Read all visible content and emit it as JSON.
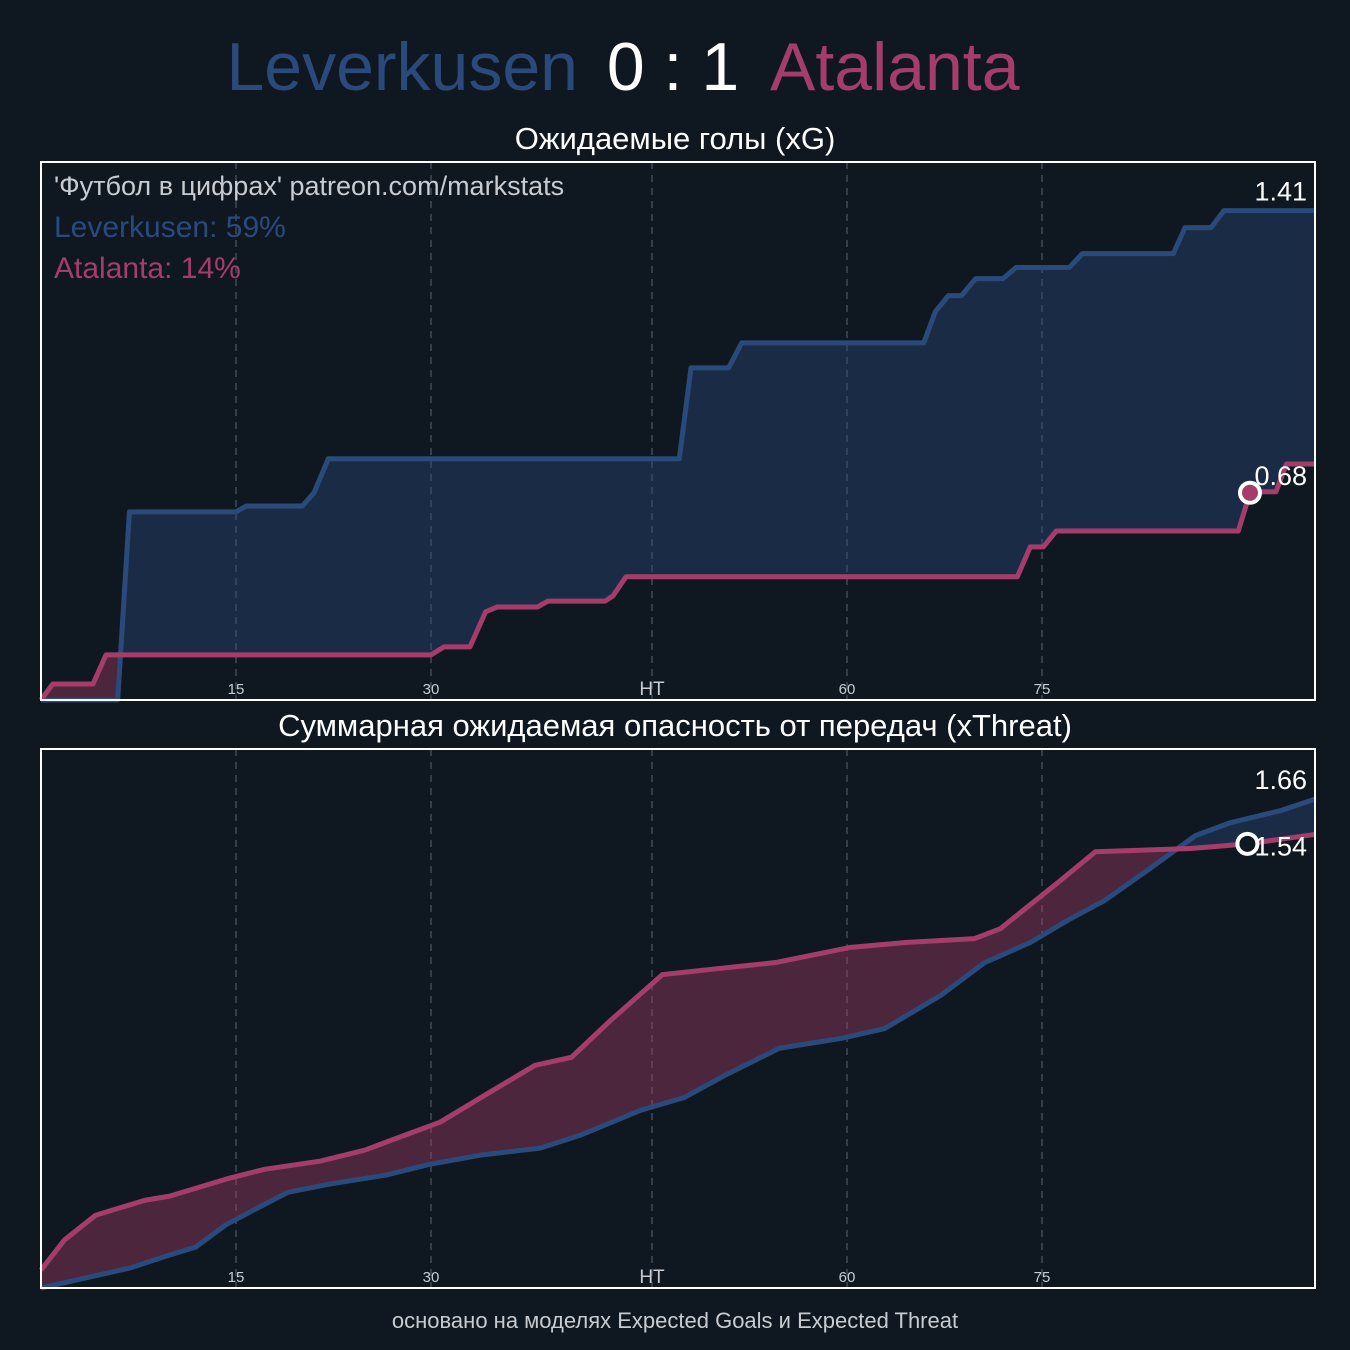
{
  "header": {
    "home": "Leverkusen",
    "score": "0 : 1",
    "away": "Atalanta",
    "home_color": "#2a4a7c",
    "away_color": "#a53d6a"
  },
  "footer": "основано на моделях Expected Goals и Expected Threat",
  "chart_data": [
    {
      "type": "line",
      "title": "Ожидаемые голы (xG)",
      "annotations": [
        "'Футбол в цифрах' patreon.com/markstats",
        "Leverkusen: 59%",
        "Atalanta: 14%"
      ],
      "xlim": [
        0,
        98
      ],
      "ylim": [
        0,
        1.55
      ],
      "xticks": [
        15,
        30,
        {
          "value": 47,
          "label": "HT"
        },
        {
          "value": 62,
          "label": "60"
        },
        {
          "value": 77,
          "label": "75"
        }
      ],
      "grid": true,
      "series": [
        {
          "name": "Leverkusen",
          "color": "#2a4a7c",
          "x": [
            0,
            5.9,
            6.8,
            15,
            15.8,
            20.1,
            21,
            22.1,
            49.1,
            50,
            52.9,
            53.9,
            67.9,
            68.8,
            69.8,
            70.8,
            71.9,
            74,
            75,
            79.1,
            80.1,
            87.1,
            88,
            90,
            91,
            98
          ],
          "values": [
            0,
            0,
            0.542,
            0.542,
            0.559,
            0.559,
            0.597,
            0.695,
            0.695,
            0.957,
            0.957,
            1.029,
            1.029,
            1.119,
            1.165,
            1.165,
            1.214,
            1.214,
            1.246,
            1.246,
            1.286,
            1.286,
            1.361,
            1.361,
            1.41,
            1.41
          ]
        },
        {
          "name": "Atalanta",
          "color": "#a53d6a",
          "x": [
            0,
            0.9,
            4,
            5,
            30,
            31,
            33,
            34.2,
            35.1,
            38.2,
            39,
            43.4,
            44,
            45,
            75.1,
            76.1,
            77.1,
            78.1,
            92.1,
            93,
            94,
            95,
            95.8,
            98
          ],
          "values": [
            0,
            0.046,
            0.046,
            0.13,
            0.13,
            0.153,
            0.153,
            0.254,
            0.268,
            0.268,
            0.285,
            0.285,
            0.3,
            0.355,
            0.355,
            0.441,
            0.441,
            0.487,
            0.487,
            0.597,
            0.6,
            0.6,
            0.68,
            0.68
          ]
        }
      ],
      "markers": {
        "x": [
          93
        ],
        "values": [
          0.597
        ],
        "fill": "#a53d6a"
      }
    },
    {
      "type": "line",
      "title": "Суммарная ожидаемая опасность от передач (xThreat)",
      "xlim": [
        0,
        98
      ],
      "ylim": [
        0,
        1.83
      ],
      "xticks": [
        15,
        30,
        {
          "value": 47,
          "label": "HT"
        },
        {
          "value": 62,
          "label": "60"
        },
        {
          "value": 77,
          "label": "75"
        }
      ],
      "grid": true,
      "series": [
        {
          "name": "Leverkusen",
          "color": "#2a4a7c",
          "x": [
            0,
            3.0,
            6.85,
            9.9,
            11.9,
            14.2,
            16.8,
            19.0,
            22.2,
            26.5,
            29.9,
            33.8,
            38.4,
            41.5,
            46.1,
            49.5,
            52.6,
            56.8,
            61.5,
            64.9,
            69.2,
            72.6,
            76.1,
            79.2,
            81.8,
            85.3,
            88.8,
            91.5,
            95.3,
            98
          ],
          "values": [
            0,
            0.03,
            0.068,
            0.112,
            0.139,
            0.214,
            0.275,
            0.325,
            0.353,
            0.383,
            0.42,
            0.451,
            0.475,
            0.519,
            0.603,
            0.647,
            0.722,
            0.814,
            0.847,
            0.881,
            0.993,
            1.105,
            1.173,
            1.254,
            1.315,
            1.424,
            1.536,
            1.58,
            1.62,
            1.66
          ]
        },
        {
          "name": "Atalanta",
          "color": "#a53d6a",
          "x": [
            0,
            1.8,
            4.2,
            8.0,
            9.9,
            14.5,
            17.2,
            21.5,
            24.9,
            28.0,
            30.7,
            34.5,
            38.0,
            40.8,
            43.8,
            47.8,
            52.2,
            56.5,
            62.2,
            66.5,
            71.8,
            73.8,
            78.4,
            81.1,
            88.4,
            92.8,
            98
          ],
          "values": [
            0.061,
            0.163,
            0.247,
            0.298,
            0.312,
            0.373,
            0.403,
            0.431,
            0.468,
            0.519,
            0.563,
            0.664,
            0.756,
            0.783,
            0.908,
            1.064,
            1.085,
            1.105,
            1.156,
            1.173,
            1.186,
            1.22,
            1.383,
            1.481,
            1.492,
            1.508,
            1.54
          ]
        }
      ],
      "markers": {
        "x": [
          92.8
        ],
        "values": [
          1.508
        ],
        "fill": "#0f1821"
      }
    }
  ]
}
